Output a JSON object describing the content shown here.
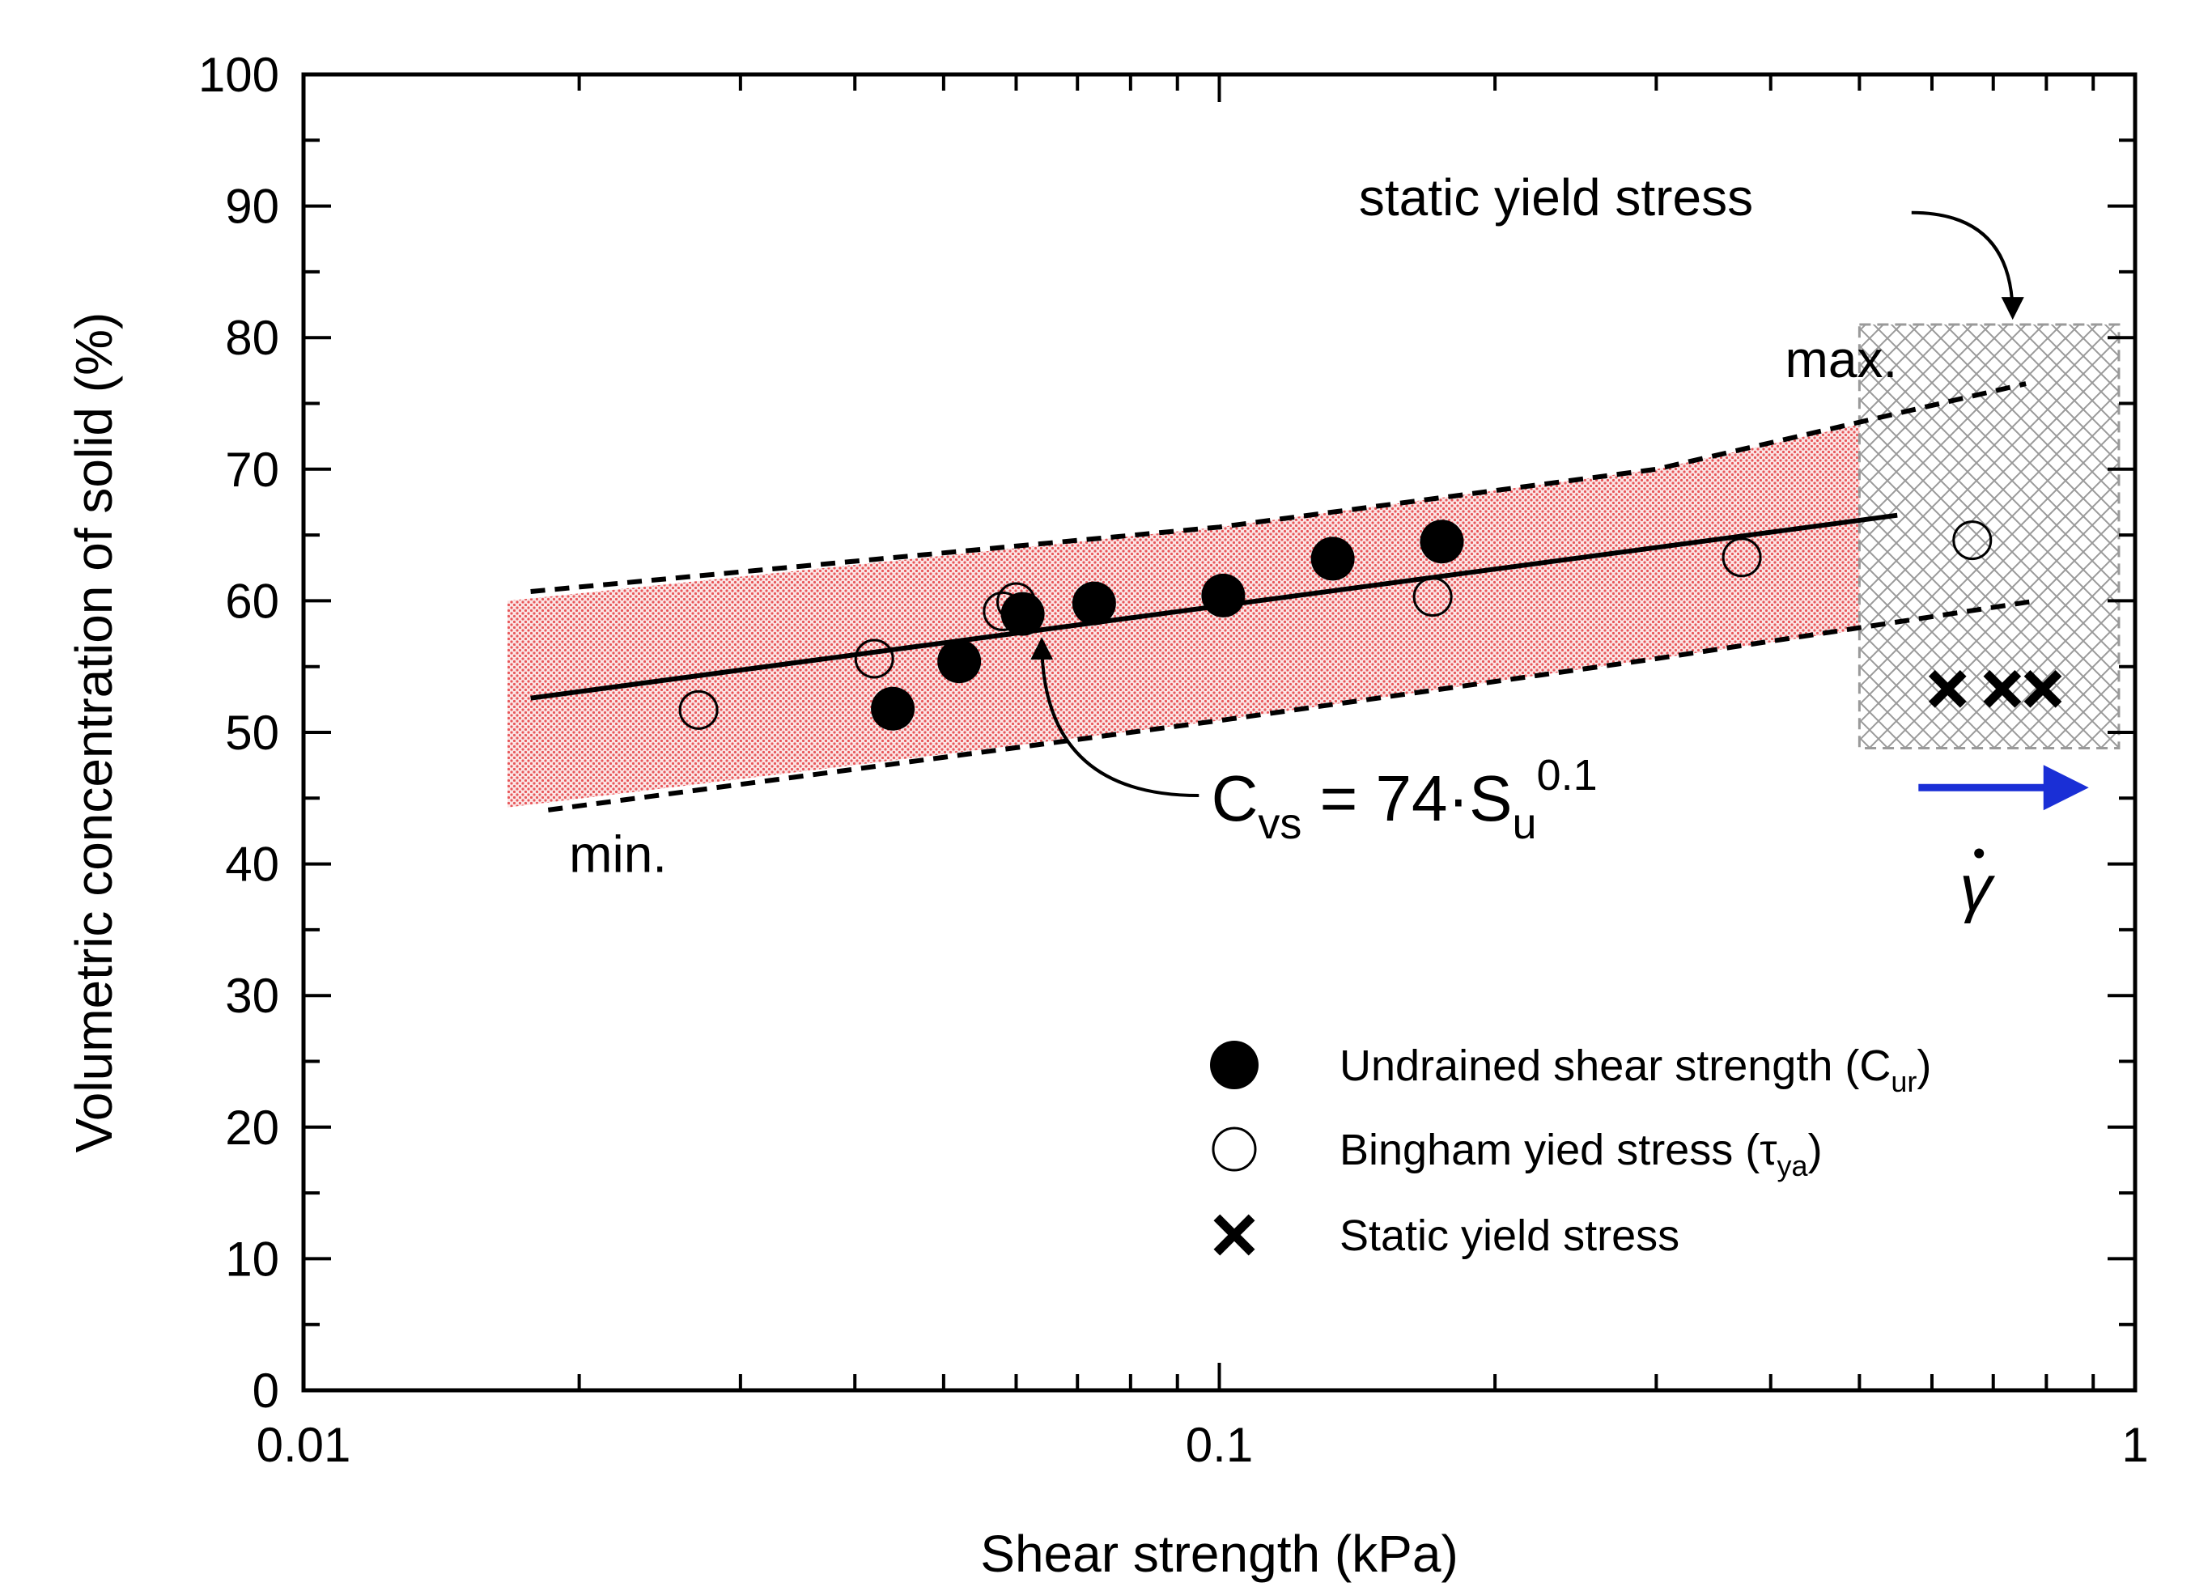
{
  "chart_data": {
    "type": "scatter",
    "title": "",
    "xlabel": "Shear strength (kPa)",
    "ylabel": "Volumetric concentration of solid (%)",
    "x_scale": "log",
    "xlim": [
      0.01,
      1
    ],
    "ylim": [
      0,
      100
    ],
    "x_tick_labels": [
      {
        "value": 0.01,
        "label": "0.01"
      },
      {
        "value": 0.1,
        "label": "0.1"
      },
      {
        "value": 1,
        "label": "1"
      }
    ],
    "y_tick_labels": [
      {
        "value": 0,
        "label": "0"
      },
      {
        "value": 10,
        "label": "10"
      },
      {
        "value": 20,
        "label": "20"
      },
      {
        "value": 30,
        "label": "30"
      },
      {
        "value": 40,
        "label": "40"
      },
      {
        "value": 50,
        "label": "50"
      },
      {
        "value": 60,
        "label": "60"
      },
      {
        "value": 70,
        "label": "70"
      },
      {
        "value": 80,
        "label": "80"
      },
      {
        "value": 90,
        "label": "90"
      },
      {
        "value": 100,
        "label": "100"
      }
    ],
    "grid": false,
    "legend_position": "bottom-right",
    "series": [
      {
        "name": "Undrained shear strength (C",
        "name_subscript": "ur",
        "name_suffix": ")",
        "marker": "filled-circle",
        "color": "#000000",
        "points": [
          {
            "x": 0.044,
            "y": 51.8
          },
          {
            "x": 0.052,
            "y": 55.4
          },
          {
            "x": 0.061,
            "y": 59.0
          },
          {
            "x": 0.073,
            "y": 59.8
          },
          {
            "x": 0.101,
            "y": 60.4
          },
          {
            "x": 0.133,
            "y": 63.2
          },
          {
            "x": 0.175,
            "y": 64.5
          }
        ]
      },
      {
        "name": "Bingham yied stress (τ",
        "name_subscript": "ya",
        "name_suffix": ")",
        "marker": "open-circle",
        "color": "#000000",
        "points": [
          {
            "x": 0.027,
            "y": 51.7
          },
          {
            "x": 0.042,
            "y": 55.6
          },
          {
            "x": 0.058,
            "y": 59.2
          },
          {
            "x": 0.06,
            "y": 59.9
          },
          {
            "x": 0.171,
            "y": 60.3
          },
          {
            "x": 0.372,
            "y": 63.3
          },
          {
            "x": 0.664,
            "y": 64.6
          }
        ]
      },
      {
        "name": "Static yield stress",
        "marker": "cross",
        "color": "#000000",
        "points": [
          {
            "x": 0.624,
            "y": 53.3
          },
          {
            "x": 0.716,
            "y": 53.3
          },
          {
            "x": 0.793,
            "y": 53.3
          }
        ]
      }
    ],
    "lines": [
      {
        "id": "fit",
        "style": "solid",
        "points": [
          {
            "x": 0.0177,
            "y": 52.6
          },
          {
            "x": 0.55,
            "y": 66.5
          }
        ]
      },
      {
        "id": "max",
        "style": "dashed",
        "points": [
          {
            "x": 0.0177,
            "y": 60.7
          },
          {
            "x": 0.1,
            "y": 65.6
          },
          {
            "x": 0.3,
            "y": 70.0
          },
          {
            "x": 0.76,
            "y": 76.5
          }
        ]
      },
      {
        "id": "min",
        "style": "dashed",
        "points": [
          {
            "x": 0.0185,
            "y": 44.1
          },
          {
            "x": 0.1,
            "y": 50.9
          },
          {
            "x": 0.3,
            "y": 55.6
          },
          {
            "x": 0.78,
            "y": 60.0
          }
        ]
      }
    ],
    "band": {
      "fill_color": "#e8575a",
      "upper": [
        {
          "x": 0.0167,
          "y": 60.0
        },
        {
          "x": 0.1,
          "y": 65.6
        },
        {
          "x": 0.3,
          "y": 70.0
        },
        {
          "x": 0.5,
          "y": 73.4
        }
      ],
      "lower": [
        {
          "x": 0.5,
          "y": 57.8
        },
        {
          "x": 0.3,
          "y": 55.6
        },
        {
          "x": 0.1,
          "y": 50.9
        },
        {
          "x": 0.0167,
          "y": 44.3
        }
      ]
    },
    "hatched_region": {
      "x": [
        0.5,
        0.96
      ],
      "y": [
        48.8,
        81.0
      ],
      "color": "#9a9a9a"
    },
    "annotations": {
      "max_label": {
        "text": "max.",
        "x": 0.55,
        "y": 77.0
      },
      "min_label": {
        "text": "min.",
        "x": 0.0195,
        "y": 39.4
      },
      "static_label": {
        "text": "static yield stress",
        "x": 0.142,
        "y": 89.3
      },
      "static_arrow": {
        "from": {
          "x": 0.57,
          "y": 89.5
        },
        "to": {
          "x": 0.735,
          "y": 81.7
        }
      },
      "equation": {
        "text": "C",
        "sub": "vs",
        "mid": " = 74·S",
        "sub2": "u",
        "sup": "0.1",
        "x": 0.098,
        "y": 43.3
      },
      "equation_arrow": {
        "from": {
          "x": 0.095,
          "y": 45.2
        },
        "to": {
          "x": 0.064,
          "y": 56.9
        }
      },
      "shear_rate_symbol": {
        "text": "γ",
        "x": 0.67,
        "y": 36.5
      },
      "shear_rate_arrow": {
        "from": {
          "x": 0.58,
          "y": 45.8
        },
        "to": {
          "x": 0.89,
          "y": 45.8
        },
        "color": "#1a2fd6"
      }
    }
  }
}
